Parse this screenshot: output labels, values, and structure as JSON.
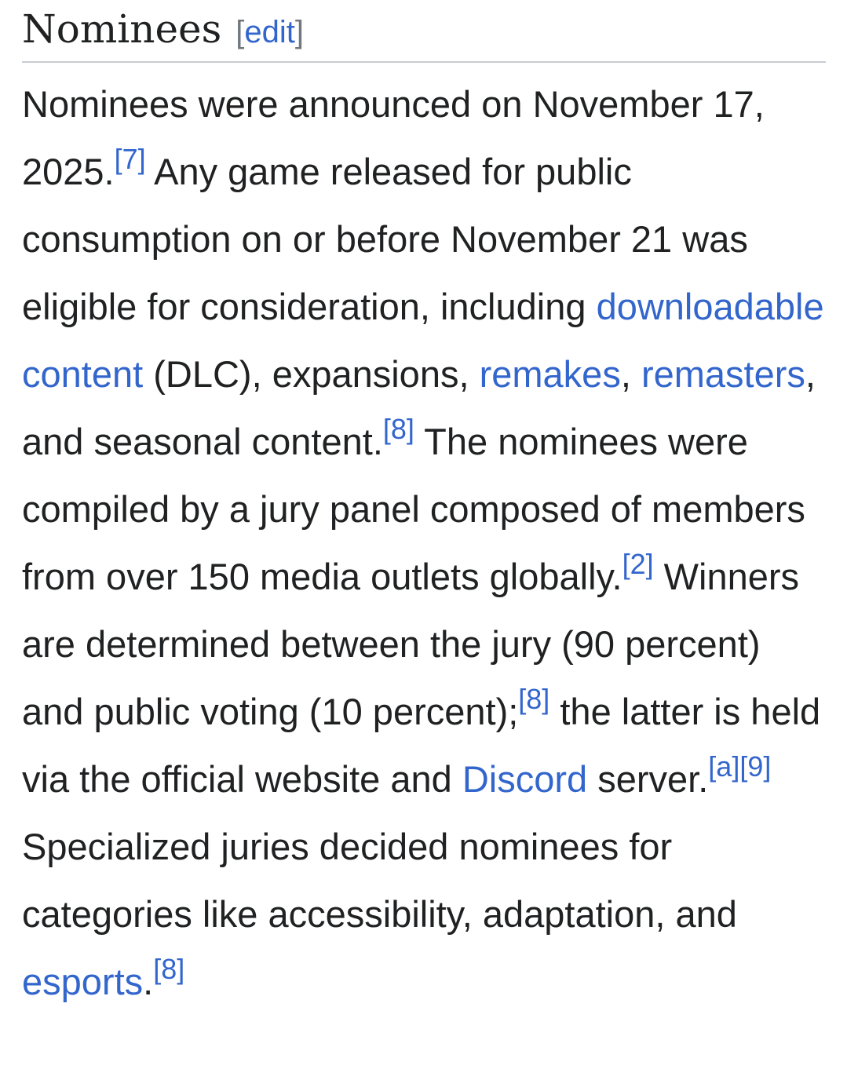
{
  "section": {
    "title": "Nominees",
    "edit_label": "edit",
    "edit_open": "[",
    "edit_close": "]"
  },
  "paragraph": [
    {
      "type": "text",
      "text": "Nominees were announced on November 17, 2025."
    },
    {
      "type": "ref",
      "text": "[7]"
    },
    {
      "type": "text",
      "text": " Any game released for public consumption on or before November 21 was eligible for consideration, including "
    },
    {
      "type": "link",
      "text": "downloadable content"
    },
    {
      "type": "text",
      "text": " (DLC), expansions, "
    },
    {
      "type": "link",
      "text": "remakes"
    },
    {
      "type": "text",
      "text": ", "
    },
    {
      "type": "link",
      "text": "remasters"
    },
    {
      "type": "text",
      "text": ", and seasonal content."
    },
    {
      "type": "ref",
      "text": "[8]"
    },
    {
      "type": "text",
      "text": " The nominees were compiled by a jury panel composed of members from over 150 media outlets globally."
    },
    {
      "type": "ref",
      "text": "[2]"
    },
    {
      "type": "text",
      "text": " Winners are determined between the jury (90 percent) and public voting (10 percent);"
    },
    {
      "type": "ref",
      "text": "[8]"
    },
    {
      "type": "text",
      "text": " the latter is held via the official website and "
    },
    {
      "type": "link",
      "text": "Discord"
    },
    {
      "type": "text",
      "text": " server."
    },
    {
      "type": "ref",
      "text": "[a]"
    },
    {
      "type": "ref",
      "text": "[9]"
    },
    {
      "type": "text",
      "text": " Specialized juries decided nominees for categories like accessibility, adaptation, and "
    },
    {
      "type": "link",
      "text": "esports"
    },
    {
      "type": "text",
      "text": "."
    },
    {
      "type": "ref",
      "text": "[8]"
    }
  ],
  "colors": {
    "text": "#202122",
    "link": "#3366cc",
    "divider": "#c8ccd1"
  }
}
